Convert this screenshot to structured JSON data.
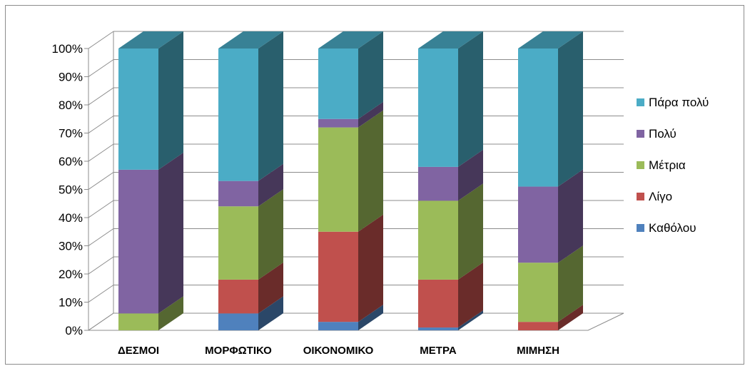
{
  "chart_data": {
    "type": "bar",
    "stacked": true,
    "percent_stacked": true,
    "three_d": true,
    "categories": [
      "ΔΕΣΜΟΙ",
      "ΜΟΡΦΩΤΙΚΟ",
      "ΟΙΚΟΝΟΜΙΚΟ",
      "ΜΕΤΡΑ",
      "ΜΙΜΗΣΗ"
    ],
    "series": [
      {
        "name": "Καθόλου",
        "color": "#4f81bd",
        "values": [
          0,
          6,
          3,
          1,
          0
        ]
      },
      {
        "name": "Λίγο",
        "color": "#c0504d",
        "values": [
          0,
          12,
          32,
          17,
          3
        ]
      },
      {
        "name": "Μέτρια",
        "color": "#9bbb59",
        "values": [
          6,
          26,
          37,
          28,
          21
        ]
      },
      {
        "name": "Πολύ",
        "color": "#8064a2",
        "values": [
          51,
          9,
          3,
          12,
          27
        ]
      },
      {
        "name": "Πάρα πολύ",
        "color": "#4bacc6",
        "values": [
          43,
          47,
          25,
          42,
          49
        ]
      }
    ],
    "y_ticks": [
      "0%",
      "10%",
      "20%",
      "30%",
      "40%",
      "50%",
      "60%",
      "70%",
      "80%",
      "90%",
      "100%"
    ],
    "ylim": [
      0,
      100
    ],
    "grid": true,
    "legend_position": "right",
    "legend_order": [
      "Πάρα πολύ",
      "Πολύ",
      "Μέτρια",
      "Λίγο",
      "Καθόλου"
    ]
  }
}
